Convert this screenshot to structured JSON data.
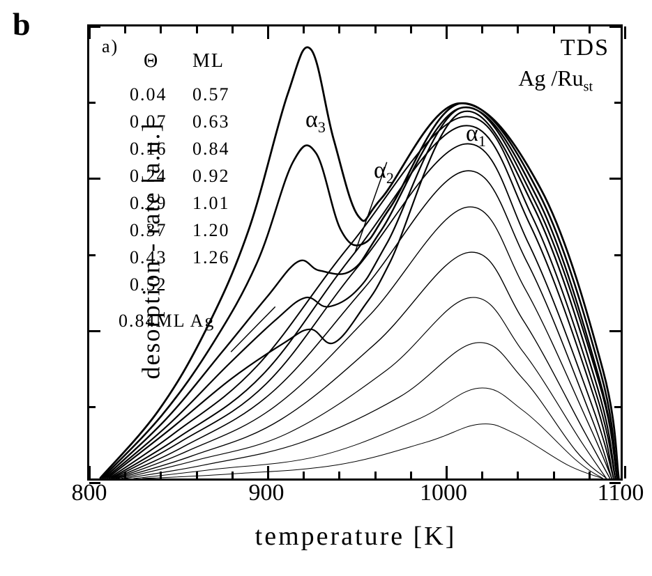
{
  "panel_label": "b",
  "chart": {
    "type": "line",
    "inset_panel_label": "a)",
    "title_tds": "TDS",
    "system": {
      "prefix": "Ag",
      "sep": "/",
      "base": "Ru",
      "sub": "st"
    },
    "xlabel": "temperature [K]",
    "ylabel": "desorption - rate [a.u.]",
    "xlim": [
      800,
      1100
    ],
    "xticks": [
      800,
      900,
      1000,
      1100
    ],
    "ylim": [
      0,
      100
    ],
    "background_color": "#ffffff",
    "axis_color": "#000000",
    "axis_linewidth": 3,
    "line_color": "#000000",
    "legend": {
      "header_theta": "Θ",
      "header_unit": "ML",
      "col1": [
        "0.04",
        "0.07",
        "0.16",
        "0.24",
        "0.29",
        "0.37",
        "0.43",
        "0.52"
      ],
      "col2": [
        "0.57",
        "0.63",
        "0.84",
        "0.92",
        "1.01",
        "1.20",
        "1.26"
      ]
    },
    "callout_084": "0.84ML Ag",
    "peak_labels": {
      "a1": "α",
      "a1_sub": "1",
      "a2": "α",
      "a2_sub": "2",
      "a3": "α",
      "a3_sub": "3"
    },
    "curves": [
      {
        "coverage": 0.04,
        "linewidth": 1.0,
        "points": [
          [
            830,
            0
          ],
          [
            880,
            1
          ],
          [
            940,
            3
          ],
          [
            990,
            8
          ],
          [
            1020,
            12
          ],
          [
            1040,
            10
          ],
          [
            1070,
            3
          ],
          [
            1090,
            0
          ]
        ]
      },
      {
        "coverage": 0.07,
        "linewidth": 1.0,
        "points": [
          [
            825,
            0
          ],
          [
            870,
            2
          ],
          [
            930,
            5
          ],
          [
            985,
            13
          ],
          [
            1020,
            20
          ],
          [
            1045,
            15
          ],
          [
            1075,
            4
          ],
          [
            1090,
            0
          ]
        ]
      },
      {
        "coverage": 0.16,
        "linewidth": 1.2,
        "points": [
          [
            820,
            0
          ],
          [
            865,
            3
          ],
          [
            920,
            8
          ],
          [
            975,
            18
          ],
          [
            1018,
            30
          ],
          [
            1045,
            22
          ],
          [
            1075,
            6
          ],
          [
            1092,
            0
          ]
        ]
      },
      {
        "coverage": 0.24,
        "linewidth": 1.2,
        "points": [
          [
            818,
            0
          ],
          [
            860,
            4
          ],
          [
            912,
            10
          ],
          [
            968,
            24
          ],
          [
            1015,
            40
          ],
          [
            1045,
            28
          ],
          [
            1078,
            8
          ],
          [
            1092,
            0
          ]
        ]
      },
      {
        "coverage": 0.29,
        "linewidth": 1.4,
        "points": [
          [
            816,
            0
          ],
          [
            858,
            5
          ],
          [
            908,
            13
          ],
          [
            962,
            30
          ],
          [
            1014,
            50
          ],
          [
            1045,
            35
          ],
          [
            1080,
            10
          ],
          [
            1094,
            0
          ]
        ]
      },
      {
        "coverage": 0.37,
        "linewidth": 1.4,
        "points": [
          [
            815,
            0
          ],
          [
            855,
            6
          ],
          [
            905,
            16
          ],
          [
            958,
            36
          ],
          [
            1013,
            60
          ],
          [
            1046,
            42
          ],
          [
            1082,
            12
          ],
          [
            1095,
            0
          ]
        ]
      },
      {
        "coverage": 0.43,
        "linewidth": 1.6,
        "points": [
          [
            814,
            0
          ],
          [
            853,
            7
          ],
          [
            903,
            19
          ],
          [
            955,
            42
          ],
          [
            1012,
            68
          ],
          [
            1047,
            48
          ],
          [
            1083,
            14
          ],
          [
            1095,
            0
          ]
        ]
      },
      {
        "coverage": 0.52,
        "linewidth": 1.8,
        "points": [
          [
            813,
            0
          ],
          [
            851,
            8
          ],
          [
            900,
            21
          ],
          [
            952,
            47
          ],
          [
            1012,
            74
          ],
          [
            1048,
            52
          ],
          [
            1084,
            16
          ],
          [
            1096,
            0
          ]
        ]
      },
      {
        "coverage": 0.57,
        "linewidth": 2.0,
        "points": [
          [
            812,
            0
          ],
          [
            850,
            9
          ],
          [
            898,
            23
          ],
          [
            950,
            50
          ],
          [
            1011,
            78
          ],
          [
            1049,
            56
          ],
          [
            1085,
            18
          ],
          [
            1096,
            0
          ]
        ]
      },
      {
        "coverage": 0.63,
        "linewidth": 2.0,
        "points": [
          [
            811,
            0
          ],
          [
            848,
            10
          ],
          [
            895,
            25
          ],
          [
            948,
            52
          ],
          [
            1011,
            80
          ],
          [
            1050,
            58
          ],
          [
            1086,
            19
          ],
          [
            1097,
            0
          ]
        ]
      },
      {
        "coverage": 0.84,
        "linewidth": 2.2,
        "points": [
          [
            810,
            0
          ],
          [
            846,
            11
          ],
          [
            880,
            22
          ],
          [
            910,
            30
          ],
          [
            925,
            33
          ],
          [
            938,
            30
          ],
          [
            955,
            38
          ],
          [
            970,
            48
          ],
          [
            1010,
            81
          ],
          [
            1051,
            60
          ],
          [
            1087,
            20
          ],
          [
            1097,
            0
          ]
        ]
      },
      {
        "coverage": 0.92,
        "linewidth": 2.2,
        "points": [
          [
            809,
            0
          ],
          [
            845,
            12
          ],
          [
            878,
            25
          ],
          [
            905,
            35
          ],
          [
            922,
            40
          ],
          [
            935,
            38
          ],
          [
            952,
            42
          ],
          [
            968,
            52
          ],
          [
            1010,
            82
          ],
          [
            1052,
            61
          ],
          [
            1088,
            21
          ],
          [
            1098,
            0
          ]
        ]
      },
      {
        "coverage": 1.01,
        "linewidth": 2.4,
        "points": [
          [
            808,
            0
          ],
          [
            843,
            13
          ],
          [
            875,
            28
          ],
          [
            900,
            40
          ],
          [
            918,
            48
          ],
          [
            930,
            46
          ],
          [
            948,
            46
          ],
          [
            965,
            55
          ],
          [
            1010,
            82
          ],
          [
            1053,
            62
          ],
          [
            1088,
            22
          ],
          [
            1098,
            0
          ]
        ]
      },
      {
        "coverage": 1.2,
        "linewidth": 2.6,
        "points": [
          [
            807,
            0
          ],
          [
            841,
            14
          ],
          [
            870,
            30
          ],
          [
            895,
            48
          ],
          [
            915,
            70
          ],
          [
            928,
            72
          ],
          [
            942,
            55
          ],
          [
            955,
            52
          ],
          [
            970,
            60
          ],
          [
            1010,
            83
          ],
          [
            1054,
            63
          ],
          [
            1089,
            23
          ],
          [
            1098,
            0
          ]
        ]
      },
      {
        "coverage": 1.26,
        "linewidth": 2.8,
        "points": [
          [
            806,
            0
          ],
          [
            839,
            15
          ],
          [
            866,
            33
          ],
          [
            890,
            55
          ],
          [
            912,
            85
          ],
          [
            925,
            95
          ],
          [
            938,
            75
          ],
          [
            952,
            58
          ],
          [
            965,
            62
          ],
          [
            1009,
            83
          ],
          [
            1055,
            64
          ],
          [
            1090,
            24
          ],
          [
            1099,
            0
          ]
        ]
      }
    ],
    "callout_line": {
      "from": [
        880,
        28
      ],
      "to": [
        905,
        38
      ]
    },
    "a2_pointer": {
      "from": [
        968,
        70
      ],
      "to": [
        950,
        50
      ]
    }
  }
}
